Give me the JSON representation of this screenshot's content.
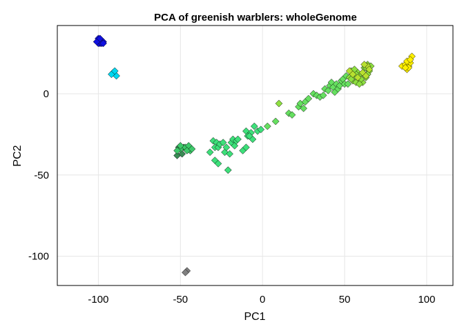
{
  "chart_data": {
    "type": "scatter",
    "title": "PCA of greenish warblers: wholeGenome",
    "xlabel": "PC1",
    "ylabel": "PC2",
    "xlim": [
      -125,
      116
    ],
    "ylim": [
      -118,
      42
    ],
    "xticks": [
      -100,
      -50,
      0,
      50,
      100
    ],
    "yticks": [
      -100,
      -50,
      0
    ],
    "xtick_labels": [
      "-100",
      "-50",
      "0",
      "50",
      "100"
    ],
    "ytick_labels": [
      "-100",
      "-50",
      "0"
    ],
    "grid": true,
    "marker": "diamond",
    "series": [
      {
        "color": "#1010e0",
        "points": [
          [
            -99,
            33
          ],
          [
            -100,
            32
          ],
          [
            -98,
            32
          ],
          [
            -99,
            31
          ],
          [
            -100,
            31
          ],
          [
            -98,
            33
          ],
          [
            -97,
            32
          ],
          [
            -100,
            34
          ],
          [
            -98,
            31
          ],
          [
            -101,
            32
          ],
          [
            -99,
            34
          ],
          [
            -97,
            31
          ]
        ]
      },
      {
        "color": "#00d8f0",
        "points": [
          [
            -91,
            13
          ],
          [
            -90,
            12
          ],
          [
            -89,
            11
          ],
          [
            -92,
            12
          ],
          [
            -90,
            14
          ]
        ]
      },
      {
        "color": "#808080",
        "points": [
          [
            -46,
            -109
          ],
          [
            -47,
            -110
          ]
        ]
      },
      {
        "color": "#3a8a55",
        "points": [
          [
            -52,
            -38
          ],
          [
            -49,
            -37
          ],
          [
            -48,
            -33
          ],
          [
            -51,
            -33
          ]
        ]
      },
      {
        "color": "#3ec96a",
        "points": [
          [
            -50,
            -34
          ],
          [
            -47,
            -33
          ],
          [
            -45,
            -32
          ],
          [
            -44,
            -35
          ],
          [
            -46,
            -35
          ],
          [
            -43,
            -34
          ],
          [
            -52,
            -35
          ],
          [
            -50,
            -32
          ]
        ]
      },
      {
        "color": "#3de07a",
        "points": [
          [
            -32,
            -36
          ],
          [
            -30,
            -29
          ],
          [
            -28,
            -30
          ],
          [
            -29,
            -33
          ],
          [
            -27,
            -33
          ],
          [
            -29,
            -41
          ],
          [
            -27,
            -43
          ],
          [
            -26,
            -31
          ],
          [
            -24,
            -30
          ],
          [
            -23,
            -36
          ],
          [
            -22,
            -33
          ],
          [
            -21,
            -47
          ],
          [
            -20,
            -37
          ],
          [
            -19,
            -30
          ],
          [
            -18,
            -28
          ],
          [
            -17,
            -32
          ],
          [
            -16,
            -29
          ],
          [
            -15,
            -28
          ],
          [
            -12,
            -35
          ],
          [
            -10,
            -23
          ],
          [
            -9,
            -26
          ],
          [
            -7,
            -24
          ],
          [
            -6,
            -28
          ],
          [
            -5,
            -20
          ],
          [
            -3,
            -23
          ],
          [
            -1,
            -22
          ],
          [
            -10,
            -33
          ],
          [
            -8,
            -26
          ],
          [
            -21,
            -47
          ]
        ]
      },
      {
        "color": "#66e060",
        "points": [
          [
            3,
            -20
          ],
          [
            8,
            -17
          ],
          [
            16,
            -12
          ],
          [
            18,
            -13
          ],
          [
            22,
            -8
          ],
          [
            23,
            -6
          ],
          [
            25,
            -9
          ],
          [
            26,
            -5
          ],
          [
            28,
            -3
          ],
          [
            31,
            0
          ],
          [
            33,
            -1
          ],
          [
            35,
            -2
          ],
          [
            37,
            -1
          ],
          [
            38,
            3
          ],
          [
            40,
            2
          ],
          [
            41,
            5
          ],
          [
            42,
            7
          ],
          [
            43,
            4
          ],
          [
            44,
            1
          ],
          [
            45,
            6
          ],
          [
            46,
            3
          ],
          [
            47,
            5
          ],
          [
            48,
            8
          ],
          [
            49,
            9
          ],
          [
            50,
            6
          ],
          [
            51,
            11
          ],
          [
            52,
            6
          ]
        ]
      },
      {
        "color": "#8ee040",
        "points": [
          [
            10,
            -6
          ],
          [
            53,
            10
          ],
          [
            54,
            14
          ],
          [
            55,
            8
          ],
          [
            56,
            11
          ],
          [
            57,
            7
          ],
          [
            58,
            13
          ],
          [
            59,
            9
          ],
          [
            60,
            12
          ],
          [
            61,
            7
          ],
          [
            62,
            16
          ],
          [
            63,
            10
          ],
          [
            64,
            18
          ],
          [
            65,
            14
          ],
          [
            66,
            17
          ],
          [
            54,
            9
          ],
          [
            57,
            12
          ],
          [
            60,
            9
          ],
          [
            62,
            12
          ],
          [
            63,
            16
          ],
          [
            64,
            12
          ],
          [
            56,
            15
          ],
          [
            59,
            6
          ]
        ]
      },
      {
        "color": "#b8e030",
        "points": [
          [
            53,
            14
          ],
          [
            55,
            12
          ],
          [
            58,
            10
          ],
          [
            61,
            13
          ],
          [
            63,
            11
          ],
          [
            64,
            17
          ],
          [
            65,
            15
          ],
          [
            62,
            18
          ]
        ]
      },
      {
        "color": "#fff000",
        "points": [
          [
            85,
            17
          ],
          [
            87,
            18
          ],
          [
            88,
            15
          ],
          [
            89,
            17
          ],
          [
            90,
            19
          ],
          [
            91,
            23
          ],
          [
            88,
            20
          ],
          [
            90,
            21
          ],
          [
            89,
            16
          ],
          [
            87,
            16
          ]
        ]
      }
    ]
  }
}
